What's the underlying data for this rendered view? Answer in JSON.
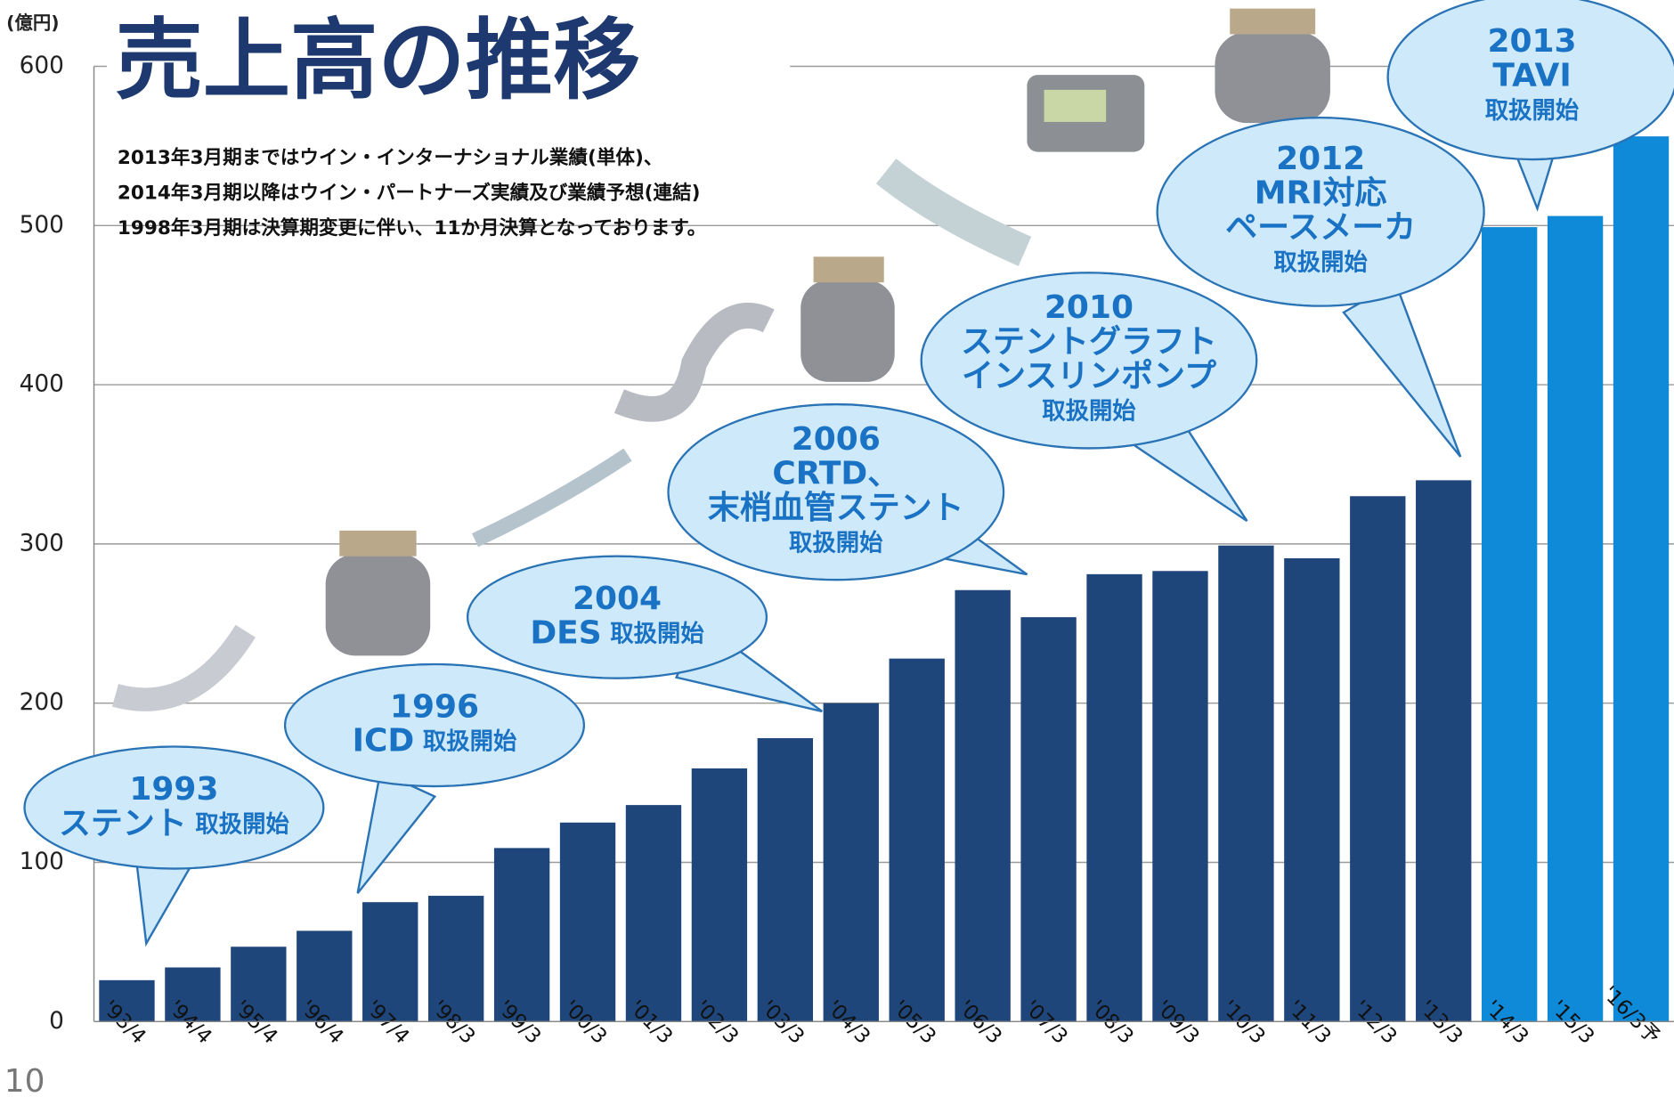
{
  "chart_data": {
    "type": "bar",
    "title": "売上高の推移",
    "unit_label": "(億円)",
    "page_number": "10",
    "notes": [
      "2013年3月期まではウイン・インターナショナル業績(単体)、",
      "2014年3月期以降はウイン・パートナーズ実績及び業績予想(連結)",
      "1998年3月期は決算期変更に伴い、11か月決算となっております。"
    ],
    "categories": [
      "'93/4",
      "'94/4",
      "'95/4",
      "'96/4",
      "'97/4",
      "'98/3",
      "'99/3",
      "'00/3",
      "'01/3",
      "'02/3",
      "'03/3",
      "'04/3",
      "'05/3",
      "'06/3",
      "'07/3",
      "'08/3",
      "'09/3",
      "'10/3",
      "'11/3",
      "'12/3",
      "'13/3",
      "'14/3",
      "'15/3",
      "'16/3予"
    ],
    "values": [
      26,
      34,
      47,
      57,
      75,
      79,
      109,
      125,
      136,
      159,
      178,
      200,
      228,
      271,
      254,
      281,
      283,
      299,
      291,
      330,
      340,
      499,
      506,
      556
    ],
    "colors": [
      "#1f467b",
      "#1f467b",
      "#1f467b",
      "#1f467b",
      "#1f467b",
      "#1f467b",
      "#1f467b",
      "#1f467b",
      "#1f467b",
      "#1f467b",
      "#1f467b",
      "#1f467b",
      "#1f467b",
      "#1f467b",
      "#1f467b",
      "#1f467b",
      "#1f467b",
      "#1f467b",
      "#1f467b",
      "#1f467b",
      "#1f467b",
      "#0f8ad8",
      "#0f8ad8",
      "#0f8ad8"
    ],
    "ylim": [
      0,
      600
    ],
    "yticks": [
      0,
      100,
      200,
      300,
      400,
      500,
      600
    ],
    "grid": true,
    "annotations": [
      {
        "lines": [
          [
            {
              "text": "1993",
              "size": "large"
            }
          ],
          [
            {
              "text": "ステント",
              "size": "large"
            },
            {
              "text": "取扱開始",
              "size": "small"
            }
          ]
        ]
      },
      {
        "lines": [
          [
            {
              "text": "1996",
              "size": "large"
            }
          ],
          [
            {
              "text": "ICD",
              "size": "large"
            },
            {
              "text": "取扱開始",
              "size": "small"
            }
          ]
        ]
      },
      {
        "lines": [
          [
            {
              "text": "2004",
              "size": "large"
            }
          ],
          [
            {
              "text": "DES",
              "size": "large"
            },
            {
              "text": "取扱開始",
              "size": "small"
            }
          ]
        ]
      },
      {
        "lines": [
          [
            {
              "text": "2006",
              "size": "large"
            }
          ],
          [
            {
              "text": "CRTD、",
              "size": "large"
            }
          ],
          [
            {
              "text": "末梢血管ステント",
              "size": "large"
            }
          ],
          [
            {
              "text": "取扱開始",
              "size": "small"
            }
          ]
        ]
      },
      {
        "lines": [
          [
            {
              "text": "2010",
              "size": "large"
            }
          ],
          [
            {
              "text": "ステントグラフト",
              "size": "large"
            }
          ],
          [
            {
              "text": "インスリンポンプ",
              "size": "large"
            }
          ],
          [
            {
              "text": "取扱開始",
              "size": "small"
            }
          ]
        ]
      },
      {
        "lines": [
          [
            {
              "text": "2012",
              "size": "large"
            }
          ],
          [
            {
              "text": "MRI対応",
              "size": "large"
            }
          ],
          [
            {
              "text": "ペースメーカ",
              "size": "large"
            }
          ],
          [
            {
              "text": "取扱開始",
              "size": "small"
            }
          ]
        ]
      },
      {
        "lines": [
          [
            {
              "text": "2013",
              "size": "large"
            }
          ],
          [
            {
              "text": "TAVI",
              "size": "large"
            }
          ],
          [
            {
              "text": "取扱開始",
              "size": "small"
            }
          ]
        ]
      }
    ]
  }
}
